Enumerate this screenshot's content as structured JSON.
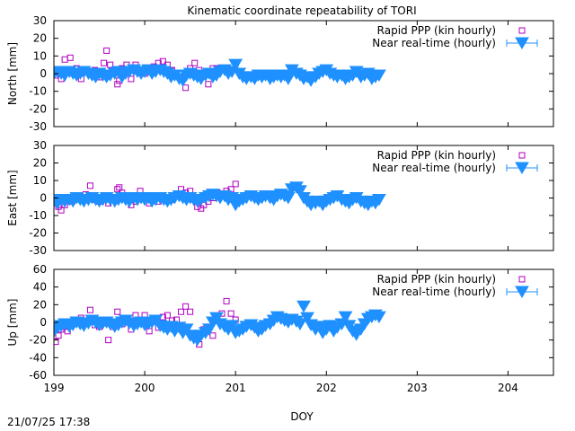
{
  "title": "Kinematic coordinate repeatability of TORI",
  "xlabel": "DOY",
  "timestamp": "21/07/25 17:38",
  "colors": {
    "ppp": "#b000c0",
    "nrt": "#1e90ff",
    "axis": "#000000"
  },
  "chart_data": [
    {
      "type": "scatter",
      "ylabel": "North [mm]",
      "ylim": [
        -30,
        30
      ],
      "yticks": [
        -30,
        -20,
        -10,
        0,
        10,
        20,
        30
      ],
      "xlim": [
        199,
        204.5
      ],
      "xticks": [
        199,
        200,
        201,
        202,
        203,
        204
      ],
      "legend_position": "top-right",
      "series": [
        {
          "name": "Rapid PPP (kin hourly)",
          "marker": "open-square",
          "color": "#b000c0",
          "x": [
            199.02,
            199.05,
            199.08,
            199.1,
            199.12,
            199.15,
            199.18,
            199.22,
            199.25,
            199.3,
            199.35,
            199.4,
            199.45,
            199.5,
            199.55,
            199.58,
            199.62,
            199.65,
            199.7,
            199.72,
            199.75,
            199.8,
            199.85,
            199.9,
            199.95,
            200.0,
            200.05,
            200.1,
            200.15,
            200.2,
            200.25,
            200.3,
            200.35,
            200.4,
            200.45,
            200.5,
            200.55,
            200.6,
            200.65,
            200.7,
            200.75,
            200.8,
            200.85,
            200.9,
            200.95
          ],
          "y": [
            -1,
            2,
            -3,
            0,
            8,
            1,
            9,
            0,
            3,
            -3,
            2,
            1,
            2,
            -2,
            6,
            13,
            5,
            0,
            -6,
            -4,
            3,
            5,
            -3,
            5,
            2,
            0,
            2,
            4,
            6,
            7,
            5,
            2,
            0,
            -2,
            -8,
            3,
            6,
            2,
            -1,
            -6,
            3,
            3,
            2,
            3,
            1
          ]
        },
        {
          "name": "Near real-time (hourly)",
          "marker": "filled-triangle-down",
          "color": "#1e90ff",
          "x": [
            199.0,
            199.04,
            199.08,
            199.12,
            199.17,
            199.21,
            199.25,
            199.29,
            199.33,
            199.38,
            199.42,
            199.46,
            199.5,
            199.54,
            199.58,
            199.62,
            199.67,
            199.71,
            199.75,
            199.79,
            199.83,
            199.88,
            199.92,
            199.96,
            200.0,
            200.04,
            200.08,
            200.12,
            200.17,
            200.21,
            200.25,
            200.29,
            200.33,
            200.38,
            200.42,
            200.46,
            200.5,
            200.54,
            200.58,
            200.62,
            200.67,
            200.71,
            200.75,
            200.79,
            200.83,
            200.88,
            200.92,
            200.96,
            201.0,
            201.04,
            201.08,
            201.12,
            201.17,
            201.21,
            201.25,
            201.29,
            201.33,
            201.38,
            201.42,
            201.46,
            201.5,
            201.54,
            201.58,
            201.62,
            201.67,
            201.71,
            201.75,
            201.79,
            201.83,
            201.88,
            201.92,
            201.96,
            202.0,
            202.04,
            202.08,
            202.12,
            202.17,
            202.21,
            202.25,
            202.29,
            202.33,
            202.38,
            202.42,
            202.46,
            202.5,
            202.54,
            202.58
          ],
          "y": [
            0,
            1,
            0,
            -1,
            1,
            0,
            -1,
            0,
            1,
            0,
            -1,
            -2,
            0,
            -1,
            -2,
            -1,
            0,
            1,
            -2,
            0,
            1,
            2,
            1,
            0,
            1,
            2,
            0,
            1,
            2,
            1,
            0,
            -2,
            -1,
            -3,
            -4,
            -1,
            0,
            -1,
            -2,
            -3,
            -1,
            0,
            -2,
            -1,
            1,
            2,
            0,
            1,
            5,
            0,
            -2,
            -3,
            -2,
            -3,
            -1,
            -2,
            -1,
            -3,
            -2,
            -1,
            -2,
            -1,
            -3,
            2,
            0,
            -1,
            -3,
            -2,
            -4,
            -2,
            0,
            1,
            2,
            0,
            -1,
            -2,
            -1,
            -3,
            -2,
            -1,
            1,
            -2,
            -1,
            0,
            -3,
            -2,
            -1
          ]
        }
      ]
    },
    {
      "type": "scatter",
      "ylabel": "East [mm]",
      "ylim": [
        -30,
        30
      ],
      "yticks": [
        -30,
        -20,
        -10,
        0,
        10,
        20,
        30
      ],
      "xlim": [
        199,
        204.5
      ],
      "xticks": [
        199,
        200,
        201,
        202,
        203,
        204
      ],
      "legend_position": "top-right",
      "series": [
        {
          "name": "Rapid PPP (kin hourly)",
          "marker": "open-square",
          "color": "#b000c0",
          "x": [
            199.02,
            199.05,
            199.08,
            199.12,
            199.15,
            199.2,
            199.25,
            199.3,
            199.35,
            199.4,
            199.45,
            199.5,
            199.55,
            199.6,
            199.65,
            199.7,
            199.72,
            199.75,
            199.8,
            199.85,
            199.9,
            199.95,
            200.0,
            200.05,
            200.1,
            200.15,
            200.2,
            200.25,
            200.3,
            200.35,
            200.4,
            200.45,
            200.5,
            200.55,
            200.58,
            200.62,
            200.65,
            200.7,
            200.75,
            200.8,
            200.85,
            200.9,
            200.95,
            201.0
          ],
          "y": [
            -3,
            -5,
            -7,
            -4,
            -1,
            -2,
            0,
            -1,
            2,
            7,
            -1,
            -2,
            0,
            -3,
            0,
            5,
            6,
            3,
            1,
            -4,
            -2,
            4,
            0,
            -3,
            -1,
            -2,
            1,
            0,
            -1,
            2,
            5,
            3,
            4,
            -1,
            -5,
            -6,
            -4,
            -2,
            0,
            3,
            2,
            4,
            5,
            8
          ]
        },
        {
          "name": "Near real-time (hourly)",
          "marker": "filled-triangle-down",
          "color": "#1e90ff",
          "x": [
            199.0,
            199.04,
            199.08,
            199.12,
            199.17,
            199.21,
            199.25,
            199.29,
            199.33,
            199.38,
            199.42,
            199.46,
            199.5,
            199.54,
            199.58,
            199.62,
            199.67,
            199.71,
            199.75,
            199.79,
            199.83,
            199.88,
            199.92,
            199.96,
            200.0,
            200.04,
            200.08,
            200.12,
            200.17,
            200.21,
            200.25,
            200.29,
            200.33,
            200.38,
            200.42,
            200.46,
            200.5,
            200.54,
            200.58,
            200.62,
            200.67,
            200.71,
            200.75,
            200.79,
            200.83,
            200.88,
            200.92,
            200.96,
            201.0,
            201.04,
            201.08,
            201.12,
            201.17,
            201.21,
            201.25,
            201.29,
            201.33,
            201.38,
            201.42,
            201.46,
            201.5,
            201.54,
            201.58,
            201.62,
            201.67,
            201.71,
            201.75,
            201.79,
            201.83,
            201.88,
            201.92,
            201.96,
            202.0,
            202.04,
            202.08,
            202.12,
            202.17,
            202.21,
            202.25,
            202.29,
            202.33,
            202.38,
            202.42,
            202.46,
            202.5,
            202.54,
            202.58
          ],
          "y": [
            -2,
            -3,
            -1,
            -2,
            -1,
            -2,
            0,
            -1,
            -2,
            -1,
            0,
            -1,
            -2,
            -1,
            0,
            -1,
            -2,
            -1,
            0,
            -1,
            -2,
            0,
            -1,
            0,
            -1,
            0,
            -2,
            -1,
            0,
            -1,
            -2,
            -1,
            0,
            1,
            0,
            -1,
            0,
            -1,
            -2,
            -1,
            0,
            1,
            2,
            1,
            0,
            1,
            -1,
            0,
            -4,
            -2,
            -1,
            0,
            1,
            0,
            -1,
            0,
            1,
            0,
            -1,
            1,
            2,
            1,
            0,
            5,
            6,
            4,
            0,
            -2,
            -4,
            -3,
            -2,
            -4,
            -2,
            -1,
            0,
            1,
            -1,
            -2,
            -3,
            -1,
            0,
            -2,
            -3,
            -4,
            -2,
            -3,
            -1
          ]
        }
      ]
    },
    {
      "type": "scatter",
      "ylabel": "Up [mm]",
      "ylim": [
        -60,
        60
      ],
      "yticks": [
        -60,
        -40,
        -20,
        0,
        20,
        40,
        60
      ],
      "xlim": [
        199,
        204.5
      ],
      "xticks": [
        199,
        200,
        201,
        202,
        203,
        204
      ],
      "legend_position": "top-right",
      "series": [
        {
          "name": "Rapid PPP (kin hourly)",
          "marker": "open-square",
          "color": "#b000c0",
          "x": [
            199.02,
            199.05,
            199.08,
            199.12,
            199.15,
            199.2,
            199.25,
            199.3,
            199.35,
            199.4,
            199.45,
            199.5,
            199.55,
            199.6,
            199.65,
            199.7,
            199.72,
            199.75,
            199.8,
            199.85,
            199.9,
            199.95,
            200.0,
            200.05,
            200.1,
            200.15,
            200.2,
            200.25,
            200.3,
            200.35,
            200.4,
            200.45,
            200.5,
            200.55,
            200.6,
            200.65,
            200.7,
            200.75,
            200.8,
            200.85,
            200.9,
            200.95,
            201.0
          ],
          "y": [
            -22,
            -15,
            -8,
            -5,
            -10,
            -2,
            0,
            5,
            2,
            14,
            -3,
            -5,
            3,
            -20,
            -5,
            12,
            3,
            -2,
            5,
            -8,
            8,
            2,
            8,
            -10,
            3,
            -6,
            6,
            8,
            2,
            3,
            12,
            18,
            12,
            -15,
            -25,
            -8,
            -5,
            -15,
            5,
            10,
            24,
            10,
            3
          ]
        },
        {
          "name": "Near real-time (hourly)",
          "marker": "filled-triangle-down",
          "color": "#1e90ff",
          "x": [
            199.0,
            199.04,
            199.08,
            199.12,
            199.17,
            199.21,
            199.25,
            199.29,
            199.33,
            199.38,
            199.42,
            199.46,
            199.5,
            199.54,
            199.58,
            199.62,
            199.67,
            199.71,
            199.75,
            199.79,
            199.83,
            199.88,
            199.92,
            199.96,
            200.0,
            200.04,
            200.08,
            200.12,
            200.17,
            200.21,
            200.25,
            200.29,
            200.33,
            200.38,
            200.42,
            200.46,
            200.5,
            200.54,
            200.58,
            200.62,
            200.67,
            200.71,
            200.75,
            200.79,
            200.83,
            200.88,
            200.92,
            200.96,
            201.0,
            201.04,
            201.08,
            201.12,
            201.17,
            201.21,
            201.25,
            201.29,
            201.33,
            201.38,
            201.42,
            201.46,
            201.5,
            201.54,
            201.58,
            201.62,
            201.67,
            201.71,
            201.75,
            201.79,
            201.83,
            201.88,
            201.92,
            201.96,
            202.0,
            202.04,
            202.08,
            202.12,
            202.17,
            202.21,
            202.25,
            202.29,
            202.33,
            202.38,
            202.42,
            202.46,
            202.5,
            202.54,
            202.58
          ],
          "y": [
            -10,
            -6,
            -4,
            -2,
            -5,
            -3,
            0,
            -2,
            -4,
            -1,
            2,
            0,
            -3,
            -1,
            0,
            -2,
            -5,
            -3,
            0,
            2,
            -1,
            -4,
            -2,
            0,
            -3,
            -2,
            0,
            2,
            -4,
            -6,
            -8,
            -5,
            -10,
            -6,
            -12,
            -8,
            -15,
            -18,
            -20,
            -15,
            -12,
            -8,
            0,
            5,
            -2,
            -5,
            -8,
            -4,
            -12,
            -10,
            -8,
            -5,
            -3,
            -6,
            -10,
            -8,
            -4,
            -2,
            2,
            6,
            4,
            2,
            0,
            3,
            1,
            -2,
            18,
            5,
            -3,
            -8,
            -5,
            -12,
            -8,
            -4,
            -10,
            -6,
            -2,
            6,
            -4,
            -10,
            -14,
            -8,
            -2,
            4,
            6,
            8,
            6
          ]
        }
      ]
    }
  ]
}
